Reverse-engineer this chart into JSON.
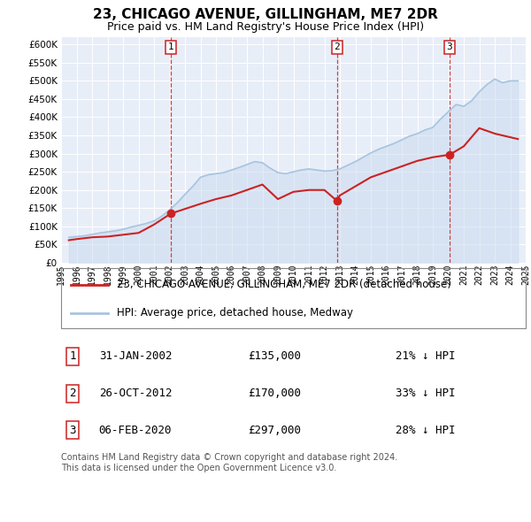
{
  "title": "23, CHICAGO AVENUE, GILLINGHAM, ME7 2DR",
  "subtitle": "Price paid vs. HM Land Registry's House Price Index (HPI)",
  "hpi_color": "#a8c4e0",
  "hpi_fill_color": "#c8daf0",
  "price_color": "#cc2222",
  "plot_bg_color": "#e8eef8",
  "grid_color": "#ffffff",
  "ylim": [
    0,
    620000
  ],
  "yticks": [
    0,
    50000,
    100000,
    150000,
    200000,
    250000,
    300000,
    350000,
    400000,
    450000,
    500000,
    550000,
    600000
  ],
  "xmin": 1995,
  "xmax": 2025,
  "transactions": [
    {
      "date": 2002.08,
      "price": 135000,
      "label": "1"
    },
    {
      "date": 2012.82,
      "price": 170000,
      "label": "2"
    },
    {
      "date": 2020.09,
      "price": 297000,
      "label": "3"
    }
  ],
  "legend_entries": [
    {
      "label": "23, CHICAGO AVENUE, GILLINGHAM, ME7 2DR (detached house)",
      "color": "#cc2222"
    },
    {
      "label": "HPI: Average price, detached house, Medway",
      "color": "#a8c4e0"
    }
  ],
  "table_rows": [
    {
      "num": "1",
      "date": "31-JAN-2002",
      "price": "£135,000",
      "hpi": "21% ↓ HPI"
    },
    {
      "num": "2",
      "date": "26-OCT-2012",
      "price": "£170,000",
      "hpi": "33% ↓ HPI"
    },
    {
      "num": "3",
      "date": "06-FEB-2020",
      "price": "£297,000",
      "hpi": "28% ↓ HPI"
    }
  ],
  "footer": "Contains HM Land Registry data © Crown copyright and database right 2024.\nThis data is licensed under the Open Government Licence v3.0.",
  "hpi_years": [
    1995.5,
    1996.0,
    1996.5,
    1997.0,
    1997.5,
    1998.0,
    1998.5,
    1999.0,
    1999.5,
    2000.0,
    2000.5,
    2001.0,
    2001.5,
    2002.0,
    2002.5,
    2003.0,
    2003.5,
    2004.0,
    2004.5,
    2005.0,
    2005.5,
    2006.0,
    2006.5,
    2007.0,
    2007.5,
    2008.0,
    2008.5,
    2009.0,
    2009.5,
    2010.0,
    2010.5,
    2011.0,
    2011.5,
    2012.0,
    2012.5,
    2013.0,
    2013.5,
    2014.0,
    2014.5,
    2015.0,
    2015.5,
    2016.0,
    2016.5,
    2017.0,
    2017.5,
    2018.0,
    2018.5,
    2019.0,
    2019.5,
    2020.0,
    2020.5,
    2021.0,
    2021.5,
    2022.0,
    2022.5,
    2023.0,
    2023.5,
    2024.0,
    2024.5
  ],
  "hpi_values": [
    70000,
    72000,
    74000,
    78000,
    82000,
    85000,
    88000,
    92000,
    98000,
    103000,
    108000,
    115000,
    128000,
    145000,
    165000,
    188000,
    210000,
    235000,
    242000,
    245000,
    248000,
    255000,
    262000,
    270000,
    278000,
    275000,
    260000,
    248000,
    245000,
    250000,
    255000,
    258000,
    255000,
    252000,
    253000,
    258000,
    268000,
    278000,
    290000,
    302000,
    312000,
    320000,
    328000,
    338000,
    348000,
    355000,
    365000,
    372000,
    395000,
    415000,
    435000,
    430000,
    445000,
    470000,
    490000,
    505000,
    495000,
    500000,
    500000
  ],
  "price_years": [
    1995.5,
    1996.0,
    1997.0,
    1998.0,
    1999.0,
    2000.0,
    2001.0,
    2002.08,
    2003.0,
    2004.0,
    2005.0,
    2006.0,
    2007.0,
    2008.0,
    2009.0,
    2010.0,
    2011.0,
    2012.0,
    2012.82,
    2013.0,
    2014.0,
    2015.0,
    2016.0,
    2017.0,
    2018.0,
    2019.0,
    2020.09,
    2021.0,
    2022.0,
    2023.0,
    2024.0,
    2024.5
  ],
  "price_values": [
    62000,
    65000,
    70000,
    72000,
    77000,
    82000,
    105000,
    135000,
    148000,
    162000,
    175000,
    185000,
    200000,
    215000,
    175000,
    195000,
    200000,
    200000,
    170000,
    185000,
    210000,
    235000,
    250000,
    265000,
    280000,
    290000,
    297000,
    320000,
    370000,
    355000,
    345000,
    340000
  ]
}
